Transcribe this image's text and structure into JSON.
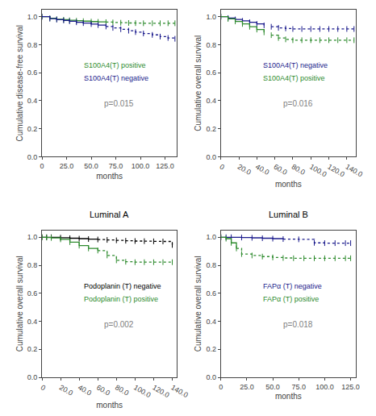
{
  "chart_data": [
    {
      "type": "step",
      "grid": false,
      "marker": "tick",
      "xlabel": "months",
      "ylabel": "Cumulative disease-free survival",
      "xlim": [
        0,
        137
      ],
      "ylim": [
        0.0,
        1.05
      ],
      "xticks": [
        0,
        {
          "value": 25.0,
          "label": "25.0"
        },
        {
          "value": 50.0,
          "label": "50.0"
        },
        {
          "value": 75.0,
          "label": "75.0"
        },
        {
          "value": 100.0,
          "label": "100.0"
        },
        {
          "value": 125.0,
          "label": "125.0"
        }
      ],
      "yticks": [
        {
          "value": 0.0,
          "label": "0.0"
        },
        0.2,
        0.4,
        0.6,
        0.8,
        {
          "value": 1.0,
          "label": "1.0"
        }
      ],
      "annotations": [
        "p=0.015"
      ],
      "series": [
        {
          "name": "S100A4(T) positive",
          "color": "#2e8b2e",
          "line_style": "solid",
          "dotted_after": 65,
          "x": [
            0,
            8,
            15,
            22,
            28,
            35,
            42,
            50,
            57,
            65,
            72,
            80,
            88,
            95,
            103,
            112,
            120,
            128,
            135
          ],
          "values": [
            1.0,
            0.988,
            0.982,
            0.978,
            0.974,
            0.971,
            0.968,
            0.965,
            0.963,
            0.961,
            0.959,
            0.957,
            0.955,
            0.954,
            0.953,
            0.953,
            0.953,
            0.953,
            0.953
          ]
        },
        {
          "name": "S100A4(T) negative",
          "color": "#1a1a8c",
          "line_style": "solid",
          "dotted_after": 65,
          "x": [
            0,
            8,
            15,
            22,
            28,
            35,
            42,
            50,
            57,
            65,
            72,
            80,
            88,
            95,
            103,
            112,
            120,
            128,
            135
          ],
          "values": [
            1.0,
            0.986,
            0.979,
            0.973,
            0.967,
            0.96,
            0.954,
            0.947,
            0.94,
            0.93,
            0.92,
            0.91,
            0.9,
            0.89,
            0.88,
            0.87,
            0.858,
            0.848,
            0.842
          ]
        }
      ]
    },
    {
      "type": "step",
      "grid": false,
      "marker": "tick",
      "xlabel": "months",
      "ylabel": "Cumulative overall survival",
      "xlim": [
        0,
        150
      ],
      "ylim": [
        0.0,
        1.05
      ],
      "xticks": [
        0,
        {
          "value": 20.0,
          "label": "20.0"
        },
        {
          "value": 40.0,
          "label": "40.0"
        },
        {
          "value": 60.0,
          "label": "60.0"
        },
        {
          "value": 80.0,
          "label": "80.0"
        },
        {
          "value": 100.0,
          "label": "100.0"
        },
        {
          "value": 120.0,
          "label": "120.0"
        },
        {
          "value": 140.0,
          "label": "140.0"
        }
      ],
      "yticks": [
        {
          "value": 0.0,
          "label": "0.0"
        },
        0.2,
        0.4,
        0.6,
        0.8,
        {
          "value": 1.0,
          "label": "1.0"
        }
      ],
      "annotations": [
        "p=0.016"
      ],
      "series": [
        {
          "name": "S100A4(T) negative",
          "color": "#1a1a8c",
          "line_style": "solid",
          "dotted_after": 55,
          "x": [
            0,
            8,
            16,
            24,
            32,
            40,
            48,
            56,
            64,
            72,
            80,
            90,
            100,
            110,
            120,
            130,
            140,
            148
          ],
          "values": [
            1.0,
            0.99,
            0.98,
            0.97,
            0.96,
            0.948,
            0.938,
            0.928,
            0.92,
            0.916,
            0.912,
            0.912,
            0.912,
            0.912,
            0.912,
            0.912,
            0.912,
            0.912
          ]
        },
        {
          "name": "S100A4(T) positive",
          "color": "#2e8b2e",
          "line_style": "solid",
          "dotted_after": 55,
          "x": [
            0,
            8,
            16,
            24,
            32,
            40,
            48,
            56,
            64,
            72,
            80,
            90,
            100,
            110,
            120,
            130,
            140,
            148
          ],
          "values": [
            1.0,
            0.984,
            0.966,
            0.948,
            0.928,
            0.908,
            0.888,
            0.868,
            0.848,
            0.838,
            0.832,
            0.832,
            0.832,
            0.832,
            0.832,
            0.832,
            0.832,
            0.832
          ]
        }
      ]
    },
    {
      "type": "step",
      "grid": false,
      "marker": "tick",
      "title": "Luminal A",
      "xlabel": "months",
      "ylabel": "Cumulative overall survival",
      "xlim": [
        0,
        145
      ],
      "ylim": [
        0.0,
        1.05
      ],
      "xticks": [
        0,
        {
          "value": 20.0,
          "label": "20.0"
        },
        {
          "value": 40.0,
          "label": "40.0"
        },
        {
          "value": 60.0,
          "label": "60.0"
        },
        {
          "value": 80.0,
          "label": "80.0"
        },
        {
          "value": 100.0,
          "label": "100.0"
        },
        {
          "value": 120.0,
          "label": "120.0"
        },
        {
          "value": 140.0,
          "label": "140.0"
        }
      ],
      "yticks": [
        {
          "value": 0.0,
          "label": "0.0"
        },
        0.2,
        0.4,
        0.6,
        0.8,
        {
          "value": 1.0,
          "label": "1.0"
        }
      ],
      "annotations": [
        "p=0.002"
      ],
      "series": [
        {
          "name": "Podoplanin (T) negative",
          "color": "#000000",
          "line_style": "solid",
          "dotted_after": 60,
          "x": [
            0,
            5,
            10,
            20,
            30,
            40,
            50,
            60,
            70,
            80,
            90,
            100,
            110,
            120,
            130,
            140
          ],
          "values": [
            1.0,
            1.0,
            1.0,
            0.997,
            0.993,
            0.99,
            0.987,
            0.984,
            0.981,
            0.978,
            0.975,
            0.973,
            0.972,
            0.971,
            0.97,
            0.945
          ]
        },
        {
          "name": "Podoplanin (T) positive",
          "color": "#2e8b2e",
          "line_style": "solid",
          "dotted_after": 60,
          "x": [
            0,
            5,
            10,
            20,
            30,
            40,
            50,
            60,
            70,
            80,
            90,
            100,
            110,
            120,
            130,
            140
          ],
          "values": [
            1.0,
            0.998,
            0.995,
            0.985,
            0.965,
            0.94,
            0.92,
            0.905,
            0.87,
            0.835,
            0.825,
            0.822,
            0.822,
            0.822,
            0.822,
            0.822
          ]
        }
      ]
    },
    {
      "type": "step",
      "grid": false,
      "marker": "tick",
      "title": "Luminal B",
      "xlabel": "months",
      "ylabel": "Cumulative overall survival",
      "xlim": [
        0,
        130
      ],
      "ylim": [
        0.0,
        1.05
      ],
      "xticks": [
        0,
        {
          "value": 25.0,
          "label": "25.0"
        },
        {
          "value": 50.0,
          "label": "50.0"
        },
        {
          "value": 75.0,
          "label": "75.0"
        },
        {
          "value": 100.0,
          "label": "100.0"
        },
        {
          "value": 125.0,
          "label": "125.0"
        }
      ],
      "yticks": [
        {
          "value": 0.0,
          "label": "0.0"
        },
        0.2,
        0.4,
        0.6,
        0.8,
        {
          "value": 1.0,
          "label": "1.0"
        }
      ],
      "annotations": [
        "p=0.018"
      ],
      "series": [
        {
          "name": "FAPα (T) negative",
          "color": "#1a1a8c",
          "line_style": "solid",
          "dotted_after": 60,
          "x": [
            0,
            5,
            10,
            20,
            30,
            40,
            50,
            60,
            75,
            90,
            100,
            110,
            120,
            125
          ],
          "values": [
            1.0,
            1.0,
            1.0,
            0.998,
            0.996,
            0.993,
            0.99,
            0.987,
            0.985,
            0.96,
            0.958,
            0.958,
            0.958,
            0.958
          ]
        },
        {
          "name": "FAPα (T) positive",
          "color": "#2e8b2e",
          "line_style": "solid",
          "dotted_after": 15,
          "x": [
            0,
            5,
            10,
            15,
            20,
            30,
            40,
            50,
            60,
            70,
            80,
            90,
            100,
            110,
            120,
            125
          ],
          "values": [
            1.0,
            0.99,
            0.96,
            0.92,
            0.88,
            0.87,
            0.862,
            0.856,
            0.852,
            0.85,
            0.85,
            0.85,
            0.85,
            0.85,
            0.85,
            0.85
          ]
        }
      ]
    }
  ]
}
